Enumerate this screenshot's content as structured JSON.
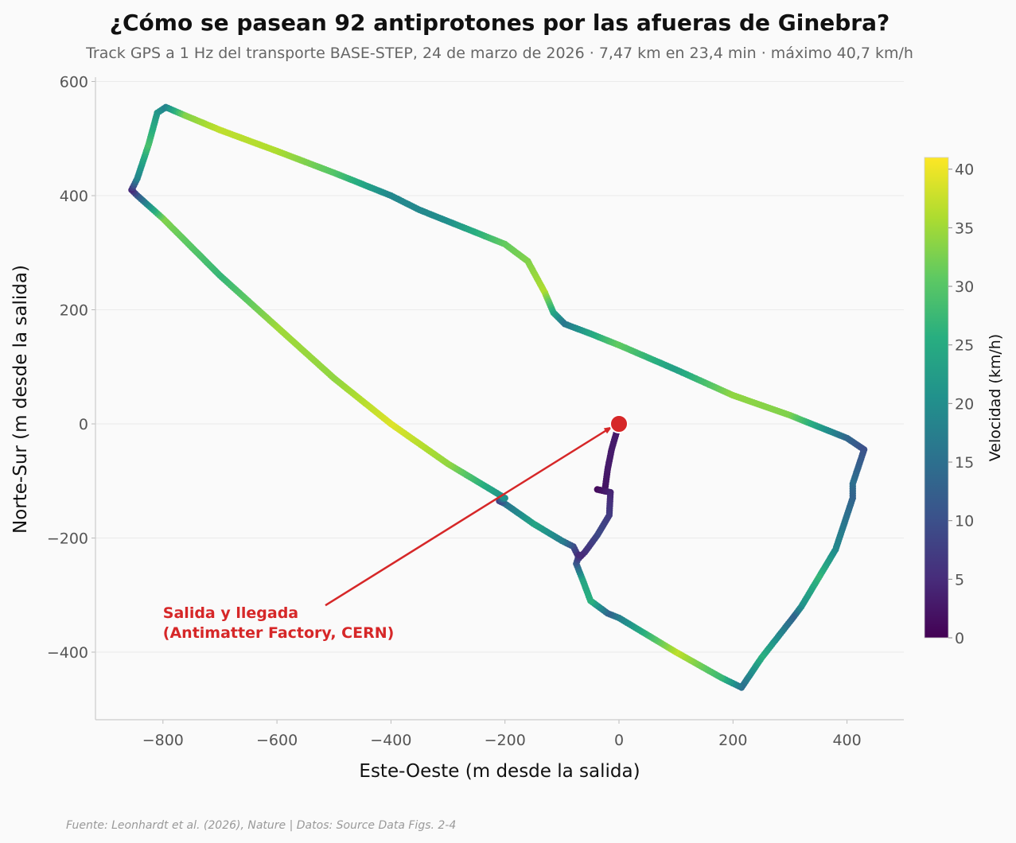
{
  "chart_data": {
    "type": "scatter",
    "title": "¿Cómo se pasean 92 antiprotones por las afueras de Ginebra?",
    "subtitle": "Track GPS a 1 Hz del transporte BASE-STEP, 24 de marzo de 2026 · 7,47 km en 23,4 min · máximo 40,7 km/h",
    "xlabel": "Este-Oeste (m desde la salida)",
    "ylabel": "Norte-Sur (m desde la salida)",
    "xlim": [
      -920,
      500
    ],
    "ylim": [
      -520,
      610
    ],
    "xticks": [
      -800,
      -600,
      -400,
      -200,
      0,
      200,
      400
    ],
    "yticks": [
      -400,
      -200,
      0,
      200,
      400,
      600
    ],
    "xtick_labels": [
      "−800",
      "−600",
      "−400",
      "−200",
      "0",
      "200",
      "400"
    ],
    "ytick_labels": [
      "−400",
      "−200",
      "0",
      "200",
      "400",
      "600"
    ],
    "grid": true,
    "colorbar": {
      "label": "Velocidad (km/h)",
      "range": [
        0,
        41
      ],
      "ticks": [
        0,
        5,
        10,
        15,
        20,
        25,
        30,
        35,
        40
      ],
      "tick_labels": [
        "0",
        "5",
        "10",
        "15",
        "20",
        "25",
        "30",
        "35",
        "40"
      ],
      "colormap": "viridis"
    },
    "track": [
      {
        "x": 0,
        "y": 0,
        "v": 3
      },
      {
        "x": -13,
        "y": -45,
        "v": 3
      },
      {
        "x": -20,
        "y": -80,
        "v": 3
      },
      {
        "x": -25,
        "y": -118,
        "v": 2
      },
      {
        "x": -38,
        "y": -115,
        "v": 1
      },
      {
        "x": -15,
        "y": -120,
        "v": 4
      },
      {
        "x": -17,
        "y": -160,
        "v": 7
      },
      {
        "x": -38,
        "y": -195,
        "v": 9
      },
      {
        "x": -60,
        "y": -225,
        "v": 6
      },
      {
        "x": -70,
        "y": -235,
        "v": 4
      },
      {
        "x": -80,
        "y": -215,
        "v": 9
      },
      {
        "x": -100,
        "y": -205,
        "v": 17
      },
      {
        "x": -150,
        "y": -175,
        "v": 24
      },
      {
        "x": -200,
        "y": -140,
        "v": 16
      },
      {
        "x": -210,
        "y": -135,
        "v": 8
      },
      {
        "x": -200,
        "y": -130,
        "v": 20
      },
      {
        "x": -300,
        "y": -70,
        "v": 34
      },
      {
        "x": -400,
        "y": 0,
        "v": 39
      },
      {
        "x": -500,
        "y": 80,
        "v": 34
      },
      {
        "x": -600,
        "y": 170,
        "v": 35
      },
      {
        "x": -700,
        "y": 260,
        "v": 27
      },
      {
        "x": -800,
        "y": 360,
        "v": 33
      },
      {
        "x": -845,
        "y": 400,
        "v": 12
      },
      {
        "x": -855,
        "y": 410,
        "v": 5
      },
      {
        "x": -845,
        "y": 430,
        "v": 18
      },
      {
        "x": -825,
        "y": 490,
        "v": 29
      },
      {
        "x": -810,
        "y": 545,
        "v": 22
      },
      {
        "x": -795,
        "y": 555,
        "v": 18
      },
      {
        "x": -760,
        "y": 540,
        "v": 33
      },
      {
        "x": -700,
        "y": 515,
        "v": 37
      },
      {
        "x": -600,
        "y": 478,
        "v": 36
      },
      {
        "x": -500,
        "y": 440,
        "v": 30
      },
      {
        "x": -400,
        "y": 400,
        "v": 19
      },
      {
        "x": -350,
        "y": 375,
        "v": 19
      },
      {
        "x": -300,
        "y": 355,
        "v": 20
      },
      {
        "x": -200,
        "y": 315,
        "v": 31
      },
      {
        "x": -160,
        "y": 285,
        "v": 33
      },
      {
        "x": -130,
        "y": 230,
        "v": 36
      },
      {
        "x": -115,
        "y": 195,
        "v": 25
      },
      {
        "x": -95,
        "y": 175,
        "v": 16
      },
      {
        "x": -50,
        "y": 158,
        "v": 24
      },
      {
        "x": 0,
        "y": 138,
        "v": 31
      },
      {
        "x": 100,
        "y": 95,
        "v": 23
      },
      {
        "x": 200,
        "y": 50,
        "v": 34
      },
      {
        "x": 300,
        "y": 15,
        "v": 33
      },
      {
        "x": 400,
        "y": -25,
        "v": 14
      },
      {
        "x": 430,
        "y": -45,
        "v": 10
      },
      {
        "x": 410,
        "y": -105,
        "v": 15
      },
      {
        "x": 410,
        "y": -130,
        "v": 13
      },
      {
        "x": 380,
        "y": -220,
        "v": 19
      },
      {
        "x": 350,
        "y": -270,
        "v": 27
      },
      {
        "x": 320,
        "y": -320,
        "v": 21
      },
      {
        "x": 305,
        "y": -340,
        "v": 13
      },
      {
        "x": 250,
        "y": -410,
        "v": 26
      },
      {
        "x": 215,
        "y": -462,
        "v": 15
      },
      {
        "x": 180,
        "y": -445,
        "v": 27
      },
      {
        "x": 100,
        "y": -400,
        "v": 37
      },
      {
        "x": 0,
        "y": -340,
        "v": 18
      },
      {
        "x": -20,
        "y": -332,
        "v": 13
      },
      {
        "x": -50,
        "y": -310,
        "v": 26
      },
      {
        "x": -65,
        "y": -270,
        "v": 24
      },
      {
        "x": -75,
        "y": -245,
        "v": 12
      },
      {
        "x": -70,
        "y": -230,
        "v": 5
      }
    ],
    "start_point": {
      "x": 0,
      "y": 0
    },
    "annotation": {
      "lines": [
        "Salida y llegada",
        "(Antimatter Factory, CERN)"
      ],
      "x": -800,
      "y": -340,
      "arrow_from": {
        "x": -515,
        "y": -318
      },
      "arrow_to": {
        "x": -12,
        "y": -5
      }
    },
    "colors": {
      "marker": "#d62728",
      "annotation": "#d62728",
      "background": "#fafafa",
      "grid": "#ebebeb"
    }
  },
  "source": "Fuente: Leonhardt et al. (2026), Nature | Datos: Source Data Figs. 2-4"
}
